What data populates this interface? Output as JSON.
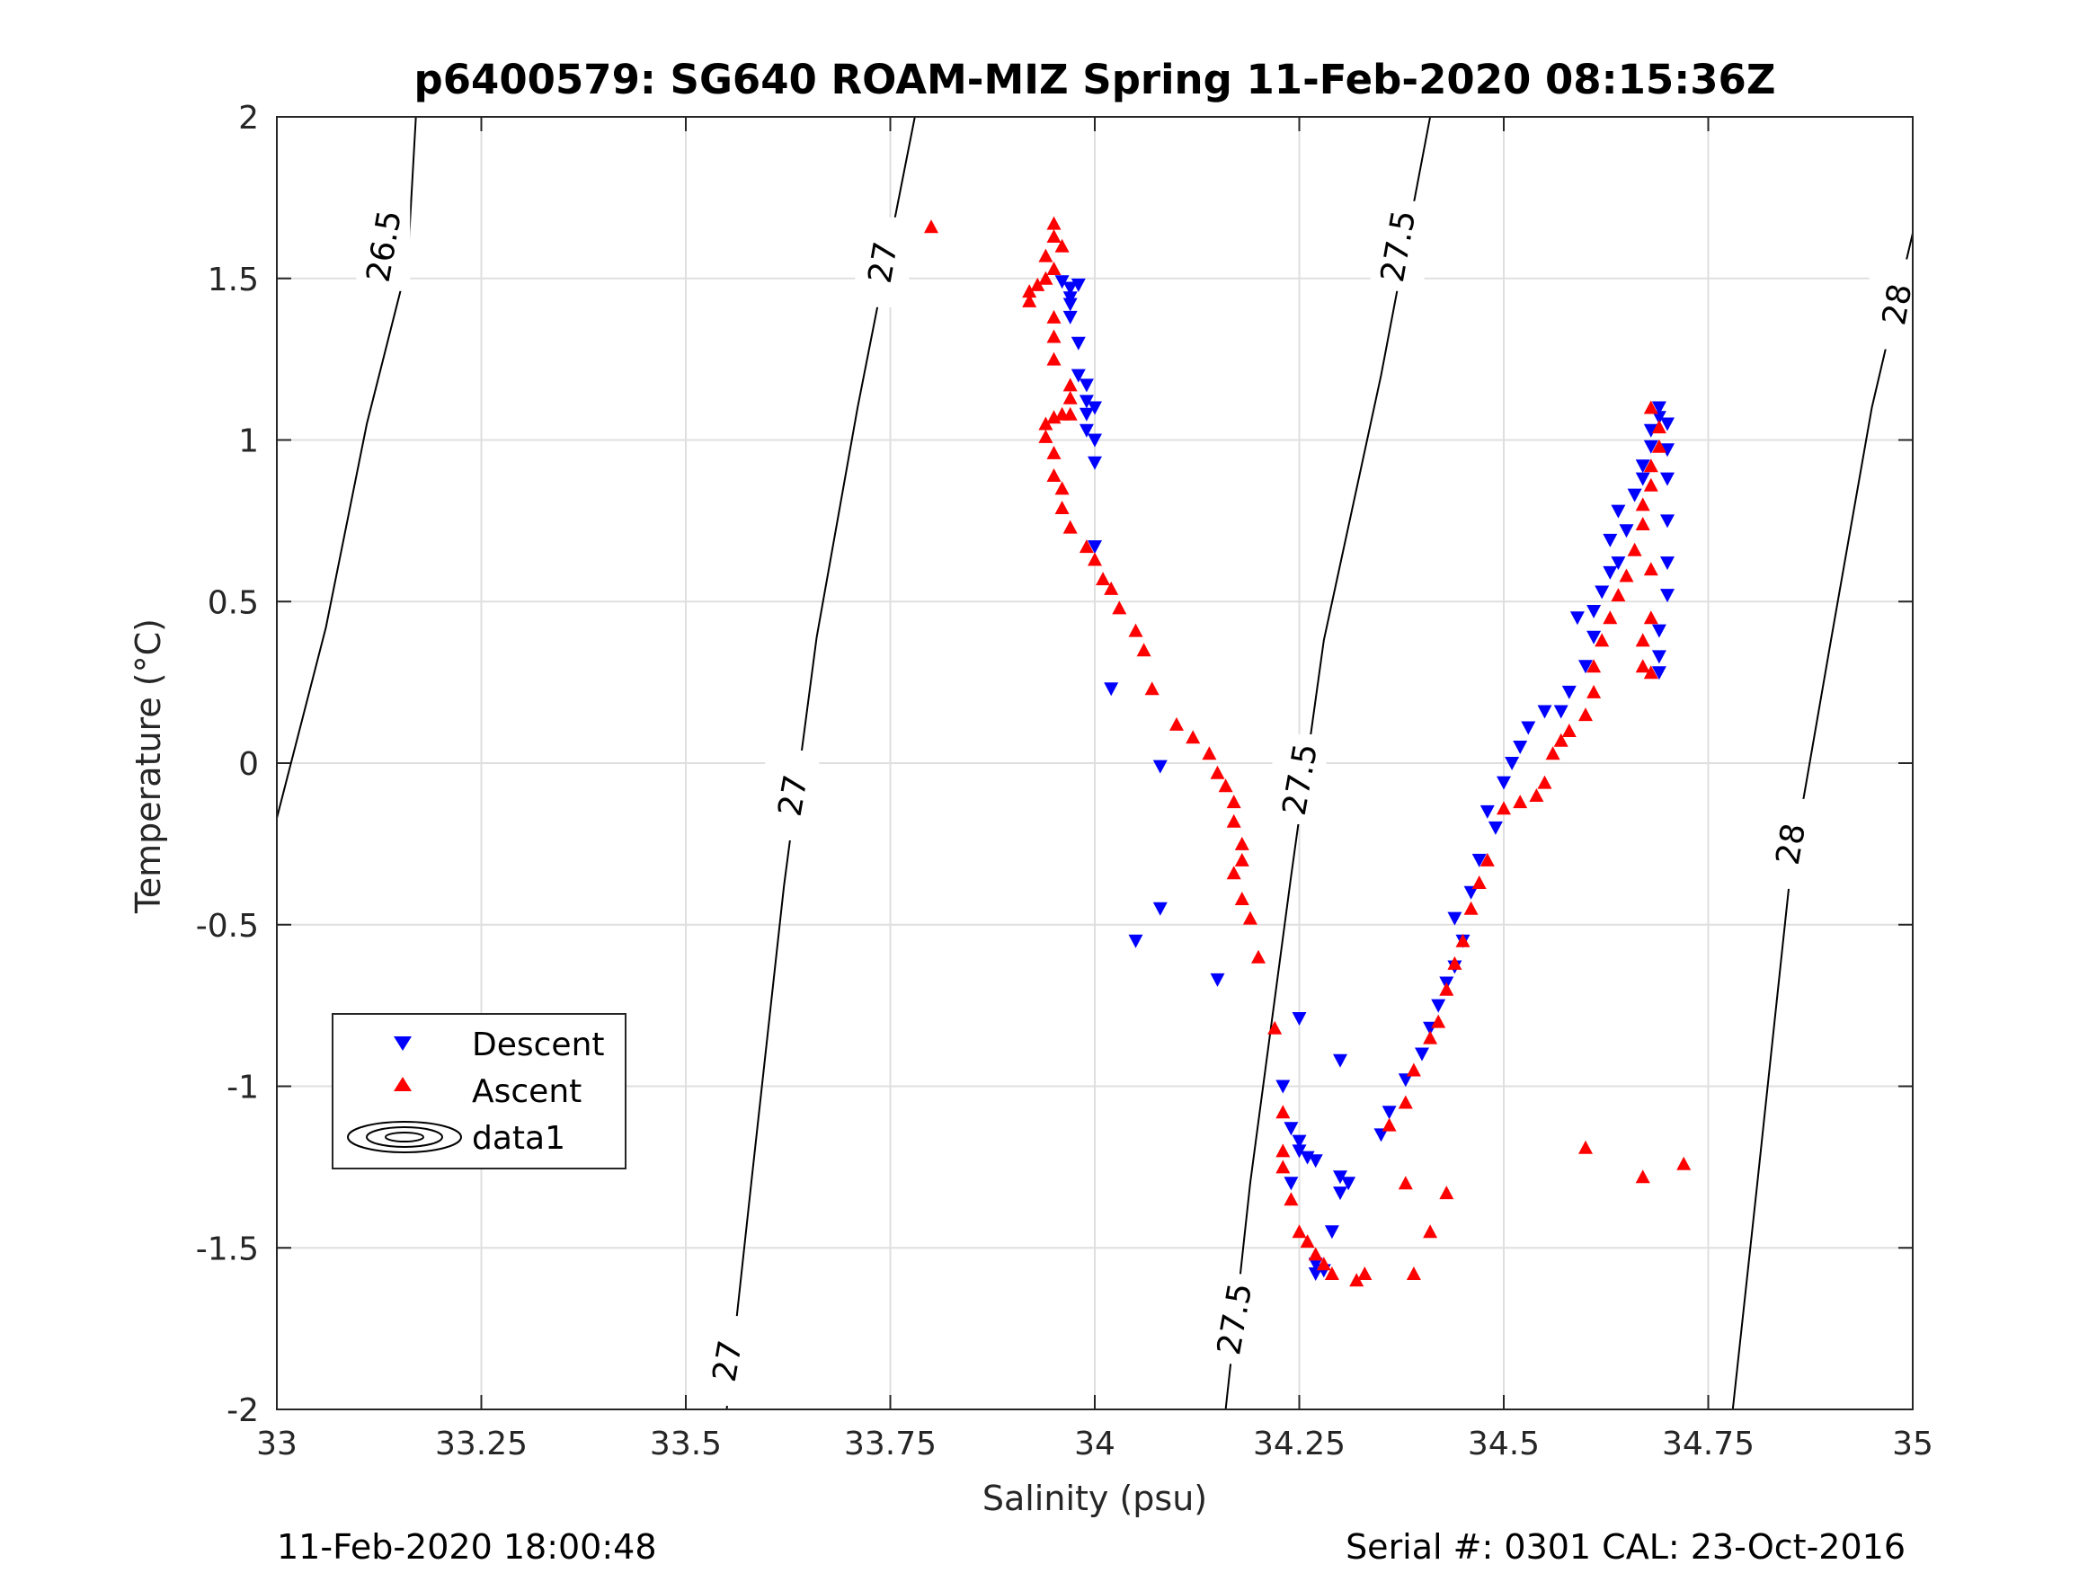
{
  "chart_data": {
    "type": "scatter",
    "title": "p6400579: SG640 ROAM-MIZ Spring 11-Feb-2020 08:15:36Z",
    "xlabel": "Salinity (psu)",
    "ylabel": "Temperature (°C)",
    "xlim": [
      33,
      35
    ],
    "ylim": [
      -2,
      2
    ],
    "x_ticks": [
      "33",
      "33.25",
      "33.5",
      "33.75",
      "34",
      "34.25",
      "34.5",
      "34.75",
      "35"
    ],
    "y_ticks": [
      "2",
      "1.5",
      "1",
      "0.5",
      "0",
      "-0.5",
      "-1",
      "-1.5",
      "-2"
    ],
    "grid": true,
    "legend": {
      "position": "lower-left",
      "entries": [
        "Descent",
        "Ascent",
        "data1"
      ]
    },
    "colors": {
      "descent": "#0000ff",
      "ascent": "#ff0000",
      "contour": "#000000"
    },
    "footer_left": "11-Feb-2020 18:00:48",
    "footer_right": "Serial #: 0301  CAL: 23-Oct-2016",
    "contours": [
      {
        "level": "26.5",
        "points": [
          [
            33.0,
            -0.17
          ],
          [
            33.06,
            0.42
          ],
          [
            33.11,
            1.05
          ],
          [
            33.16,
            1.55
          ],
          [
            33.17,
            2.0
          ]
        ],
        "labels": [
          [
            33.13,
            1.6
          ]
        ]
      },
      {
        "level": "27",
        "points": [
          [
            33.55,
            -2.0
          ],
          [
            33.58,
            -1.3
          ],
          [
            33.62,
            -0.38
          ],
          [
            33.66,
            0.39
          ],
          [
            33.71,
            1.1
          ],
          [
            33.78,
            2.0
          ]
        ],
        "labels": [
          [
            33.55,
            -1.85
          ],
          [
            33.63,
            -0.1
          ],
          [
            33.74,
            1.55
          ]
        ]
      },
      {
        "level": "27.5",
        "points": [
          [
            34.16,
            -2.0
          ],
          [
            34.19,
            -1.3
          ],
          [
            34.24,
            -0.35
          ],
          [
            34.28,
            0.38
          ],
          [
            34.35,
            1.2
          ],
          [
            34.41,
            2.0
          ]
        ],
        "labels": [
          [
            34.17,
            -1.72
          ],
          [
            34.25,
            -0.05
          ],
          [
            34.37,
            1.6
          ]
        ]
      },
      {
        "level": "28",
        "points": [
          [
            34.78,
            -2.0
          ],
          [
            34.81,
            -1.3
          ],
          [
            34.85,
            -0.35
          ],
          [
            34.9,
            0.38
          ],
          [
            34.95,
            1.1
          ],
          [
            35.0,
            1.64
          ]
        ],
        "labels": [
          [
            34.85,
            -0.25
          ],
          [
            34.98,
            1.42
          ]
        ]
      }
    ],
    "series": [
      {
        "name": "Descent",
        "marker": "triangle-down",
        "points": [
          [
            33.96,
            1.49
          ],
          [
            33.97,
            1.47
          ],
          [
            33.97,
            1.44
          ],
          [
            33.98,
            1.48
          ],
          [
            33.97,
            1.42
          ],
          [
            33.97,
            1.38
          ],
          [
            33.98,
            1.3
          ],
          [
            33.98,
            1.2
          ],
          [
            33.99,
            1.17
          ],
          [
            33.99,
            1.12
          ],
          [
            33.99,
            1.08
          ],
          [
            34.0,
            1.1
          ],
          [
            33.99,
            1.03
          ],
          [
            34.0,
            1.0
          ],
          [
            34.0,
            0.93
          ],
          [
            34.0,
            0.67
          ],
          [
            34.02,
            0.23
          ],
          [
            34.08,
            -0.01
          ],
          [
            34.05,
            -0.55
          ],
          [
            34.08,
            -0.45
          ],
          [
            34.15,
            -0.67
          ],
          [
            34.25,
            -0.79
          ],
          [
            34.23,
            -1.0
          ],
          [
            34.24,
            -1.13
          ],
          [
            34.25,
            -1.17
          ],
          [
            34.25,
            -1.2
          ],
          [
            34.26,
            -1.22
          ],
          [
            34.27,
            -1.23
          ],
          [
            34.24,
            -1.3
          ],
          [
            34.3,
            -1.28
          ],
          [
            34.31,
            -1.3
          ],
          [
            34.3,
            -1.33
          ],
          [
            34.29,
            -1.45
          ],
          [
            34.27,
            -1.55
          ],
          [
            34.27,
            -1.58
          ],
          [
            34.28,
            -1.57
          ],
          [
            34.3,
            -0.92
          ],
          [
            34.35,
            -1.15
          ],
          [
            34.36,
            -1.08
          ],
          [
            34.38,
            -0.98
          ],
          [
            34.4,
            -0.9
          ],
          [
            34.41,
            -0.82
          ],
          [
            34.42,
            -0.75
          ],
          [
            34.43,
            -0.68
          ],
          [
            34.44,
            -0.63
          ],
          [
            34.45,
            -0.55
          ],
          [
            34.44,
            -0.48
          ],
          [
            34.46,
            -0.4
          ],
          [
            34.47,
            -0.3
          ],
          [
            34.49,
            -0.2
          ],
          [
            34.48,
            -0.15
          ],
          [
            34.5,
            -0.06
          ],
          [
            34.51,
            0.0
          ],
          [
            34.52,
            0.05
          ],
          [
            34.53,
            0.11
          ],
          [
            34.55,
            0.16
          ],
          [
            34.57,
            0.16
          ],
          [
            34.58,
            0.22
          ],
          [
            34.6,
            0.3
          ],
          [
            34.61,
            0.39
          ],
          [
            34.59,
            0.45
          ],
          [
            34.61,
            0.47
          ],
          [
            34.62,
            0.53
          ],
          [
            34.63,
            0.59
          ],
          [
            34.64,
            0.62
          ],
          [
            34.63,
            0.69
          ],
          [
            34.65,
            0.72
          ],
          [
            34.64,
            0.78
          ],
          [
            34.66,
            0.83
          ],
          [
            34.67,
            0.88
          ],
          [
            34.67,
            0.92
          ],
          [
            34.68,
            0.98
          ],
          [
            34.68,
            1.03
          ],
          [
            34.69,
            1.07
          ],
          [
            34.69,
            1.1
          ],
          [
            34.7,
            1.05
          ],
          [
            34.7,
            0.97
          ],
          [
            34.7,
            0.88
          ],
          [
            34.7,
            0.75
          ],
          [
            34.7,
            0.62
          ],
          [
            34.7,
            0.52
          ],
          [
            34.69,
            0.41
          ],
          [
            34.69,
            0.33
          ],
          [
            34.69,
            0.28
          ]
        ]
      },
      {
        "name": "Ascent",
        "marker": "triangle-up",
        "points": [
          [
            33.8,
            1.66
          ],
          [
            33.95,
            1.67
          ],
          [
            33.95,
            1.63
          ],
          [
            33.96,
            1.6
          ],
          [
            33.94,
            1.57
          ],
          [
            33.95,
            1.53
          ],
          [
            33.94,
            1.5
          ],
          [
            33.93,
            1.48
          ],
          [
            33.92,
            1.46
          ],
          [
            33.92,
            1.43
          ],
          [
            33.95,
            1.38
          ],
          [
            33.95,
            1.32
          ],
          [
            33.95,
            1.25
          ],
          [
            33.97,
            1.17
          ],
          [
            33.97,
            1.13
          ],
          [
            33.97,
            1.08
          ],
          [
            33.96,
            1.08
          ],
          [
            33.95,
            1.07
          ],
          [
            33.94,
            1.05
          ],
          [
            33.94,
            1.01
          ],
          [
            33.95,
            0.96
          ],
          [
            33.95,
            0.89
          ],
          [
            33.96,
            0.85
          ],
          [
            33.96,
            0.79
          ],
          [
            33.97,
            0.73
          ],
          [
            33.99,
            0.67
          ],
          [
            34.0,
            0.63
          ],
          [
            34.01,
            0.57
          ],
          [
            34.02,
            0.54
          ],
          [
            34.03,
            0.48
          ],
          [
            34.05,
            0.41
          ],
          [
            34.06,
            0.35
          ],
          [
            34.07,
            0.23
          ],
          [
            34.1,
            0.12
          ],
          [
            34.12,
            0.08
          ],
          [
            34.14,
            0.03
          ],
          [
            34.15,
            -0.03
          ],
          [
            34.16,
            -0.07
          ],
          [
            34.17,
            -0.12
          ],
          [
            34.17,
            -0.18
          ],
          [
            34.18,
            -0.25
          ],
          [
            34.18,
            -0.3
          ],
          [
            34.17,
            -0.34
          ],
          [
            34.18,
            -0.42
          ],
          [
            34.19,
            -0.48
          ],
          [
            34.2,
            -0.6
          ],
          [
            34.22,
            -0.82
          ],
          [
            34.23,
            -1.08
          ],
          [
            34.23,
            -1.2
          ],
          [
            34.23,
            -1.25
          ],
          [
            34.24,
            -1.35
          ],
          [
            34.25,
            -1.45
          ],
          [
            34.26,
            -1.48
          ],
          [
            34.27,
            -1.52
          ],
          [
            34.28,
            -1.55
          ],
          [
            34.29,
            -1.58
          ],
          [
            34.32,
            -1.6
          ],
          [
            34.33,
            -1.58
          ],
          [
            34.36,
            -1.12
          ],
          [
            34.38,
            -1.05
          ],
          [
            34.39,
            -0.95
          ],
          [
            34.41,
            -0.85
          ],
          [
            34.42,
            -0.8
          ],
          [
            34.43,
            -0.7
          ],
          [
            34.44,
            -0.62
          ],
          [
            34.45,
            -0.55
          ],
          [
            34.46,
            -0.45
          ],
          [
            34.47,
            -0.37
          ],
          [
            34.48,
            -0.3
          ],
          [
            34.5,
            -0.14
          ],
          [
            34.52,
            -0.12
          ],
          [
            34.54,
            -0.1
          ],
          [
            34.55,
            -0.06
          ],
          [
            34.56,
            0.03
          ],
          [
            34.57,
            0.07
          ],
          [
            34.58,
            0.1
          ],
          [
            34.6,
            0.15
          ],
          [
            34.61,
            0.22
          ],
          [
            34.61,
            0.3
          ],
          [
            34.62,
            0.38
          ],
          [
            34.63,
            0.45
          ],
          [
            34.64,
            0.52
          ],
          [
            34.65,
            0.58
          ],
          [
            34.66,
            0.66
          ],
          [
            34.67,
            0.74
          ],
          [
            34.67,
            0.8
          ],
          [
            34.68,
            0.86
          ],
          [
            34.68,
            0.92
          ],
          [
            34.69,
            0.98
          ],
          [
            34.69,
            1.04
          ],
          [
            34.68,
            1.1
          ],
          [
            34.68,
            0.6
          ],
          [
            34.68,
            0.45
          ],
          [
            34.67,
            0.38
          ],
          [
            34.67,
            0.3
          ],
          [
            34.68,
            0.28
          ],
          [
            34.39,
            -1.58
          ],
          [
            34.41,
            -1.45
          ],
          [
            34.43,
            -1.33
          ],
          [
            34.38,
            -1.3
          ],
          [
            34.6,
            -1.19
          ],
          [
            34.67,
            -1.28
          ],
          [
            34.72,
            -1.24
          ]
        ]
      }
    ]
  }
}
